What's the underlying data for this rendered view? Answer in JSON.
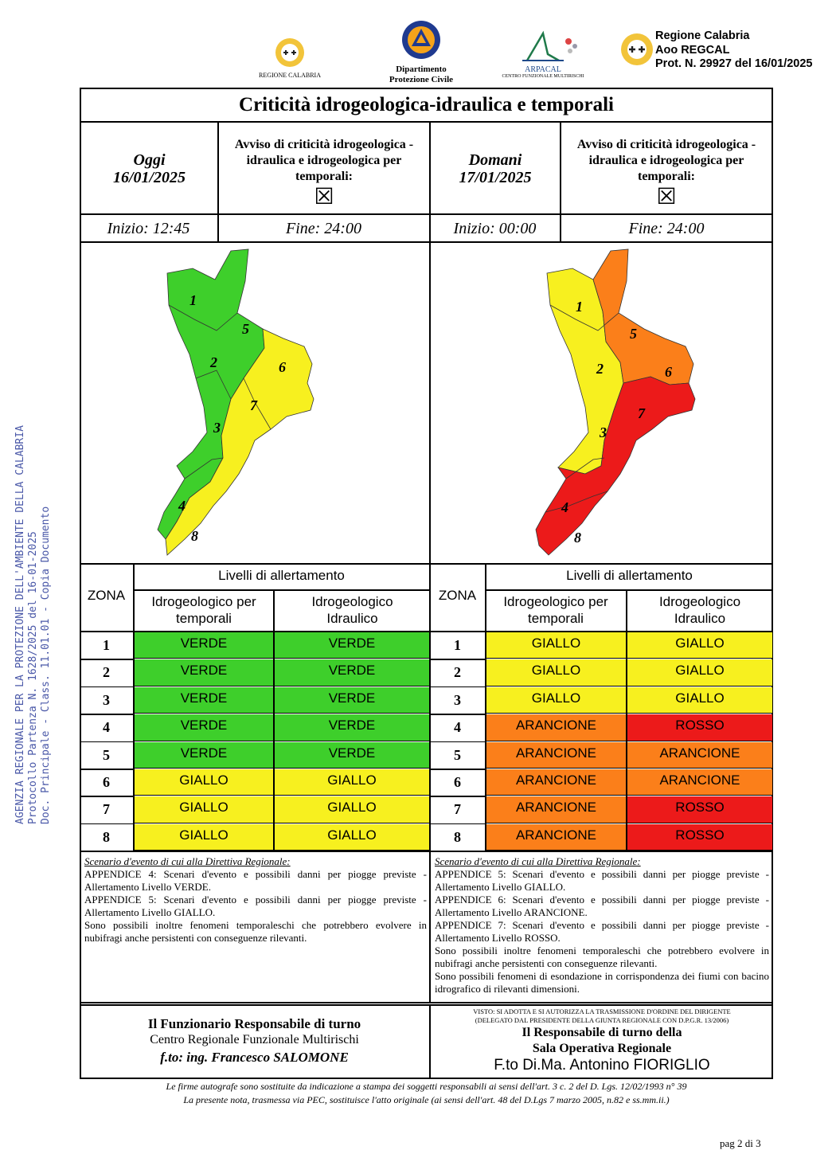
{
  "header": {
    "logo1_caption": "REGIONE CALABRIA",
    "logo2_caption_1": "Dipartimento",
    "logo2_caption_2": "Protezione Civile",
    "logo3_caption": "ARPACAL",
    "logo3_sub": "CENTRO FUNZIONALE MULTIRISCHI",
    "prot_line1": "Regione Calabria",
    "prot_line2": "Aoo REGCAL",
    "prot_line3": "Prot. N. 29927 del 16/01/2025"
  },
  "side_stamp": {
    "line1": "AGENZIA REGIONALE PER LA PROTEZIONE DELL'AMBIENTE DELLA CALABRIA",
    "line2": "Protocollo Partenza N. 1628/2025 del 16-01-2025",
    "line3": "Doc. Principale - Class. 11.01.01 - Copia Documento"
  },
  "title": "Criticità idrogeologica-idraulica e temporali",
  "today": {
    "label": "Oggi",
    "date": "16/01/2025",
    "avviso": "Avviso di criticità idrogeologica - idraulica e idrogeologica per temporali:",
    "checkbox": "☒",
    "inizio": "Inizio: 12:45",
    "fine": "Fine: 24:00"
  },
  "tomorrow": {
    "label": "Domani",
    "date": "17/01/2025",
    "avviso": "Avviso di criticità idrogeologica - idraulica e idrogeologica per temporali:",
    "checkbox": "☒",
    "inizio": "Inizio: 00:00",
    "fine": "Fine: 24:00"
  },
  "map_labels": [
    "1",
    "2",
    "3",
    "4",
    "5",
    "6",
    "7",
    "8"
  ],
  "table": {
    "zona_header": "ZONA",
    "livelli_header": "Livelli di allertamento",
    "col1_header": "Idrogeologico per temporali",
    "col2_header": "Idrogeologico Idraulico",
    "colors": {
      "VERDE": "#3ecf2b",
      "GIALLO": "#f7f01f",
      "ARANCIONE": "#fb7f1a",
      "ROSSO": "#ec1a1a"
    },
    "today_rows": [
      {
        "zona": "1",
        "t": "VERDE",
        "i": "VERDE"
      },
      {
        "zona": "2",
        "t": "VERDE",
        "i": "VERDE"
      },
      {
        "zona": "3",
        "t": "VERDE",
        "i": "VERDE"
      },
      {
        "zona": "4",
        "t": "VERDE",
        "i": "VERDE"
      },
      {
        "zona": "5",
        "t": "VERDE",
        "i": "VERDE"
      },
      {
        "zona": "6",
        "t": "GIALLO",
        "i": "GIALLO"
      },
      {
        "zona": "7",
        "t": "GIALLO",
        "i": "GIALLO"
      },
      {
        "zona": "8",
        "t": "GIALLO",
        "i": "GIALLO"
      }
    ],
    "tomorrow_rows": [
      {
        "zona": "1",
        "t": "GIALLO",
        "i": "GIALLO"
      },
      {
        "zona": "2",
        "t": "GIALLO",
        "i": "GIALLO"
      },
      {
        "zona": "3",
        "t": "GIALLO",
        "i": "GIALLO"
      },
      {
        "zona": "4",
        "t": "ARANCIONE",
        "i": "ROSSO"
      },
      {
        "zona": "5",
        "t": "ARANCIONE",
        "i": "ARANCIONE"
      },
      {
        "zona": "6",
        "t": "ARANCIONE",
        "i": "ARANCIONE"
      },
      {
        "zona": "7",
        "t": "ARANCIONE",
        "i": "ROSSO"
      },
      {
        "zona": "8",
        "t": "ARANCIONE",
        "i": "ROSSO"
      }
    ]
  },
  "scenario": {
    "heading": "Scenario d'evento di cui alla Direttiva Regionale:",
    "today_lines": [
      "APPENDICE 4: Scenari d'evento e possibili danni per piogge previste - Allertamento Livello VERDE.",
      "APPENDICE 5: Scenari d'evento e possibili danni per piogge previste - Allertamento Livello GIALLO.",
      "Sono possibili inoltre fenomeni temporaleschi che potrebbero evolvere in nubifragi anche persistenti con conseguenze rilevanti."
    ],
    "tomorrow_lines": [
      "APPENDICE 5: Scenari d'evento e possibili danni per piogge previste - Allertamento Livello GIALLO.",
      "APPENDICE 6: Scenari d'evento e possibili danni per piogge previste - Allertamento Livello ARANCIONE.",
      "APPENDICE 7: Scenari d'evento e possibili danni per piogge previste - Allertamento Livello ROSSO.",
      "Sono possibili inoltre fenomeni temporaleschi che potrebbero evolvere in nubifragi anche persistenti con conseguenze rilevanti.",
      "Sono possibili fenomeni di esondazione in corrispondenza dei fiumi con bacino idrografico di rilevanti dimensioni."
    ]
  },
  "signatures": {
    "left_title": "Il Funzionario Responsabile di turno",
    "left_sub": "Centro Regionale Funzionale Multirischi",
    "left_name": "f.to: ing. Francesco SALOMONE",
    "right_visto1": "VISTO: SI ADOTTA E SI AUTORIZZA LA TRASMISSIONE D'ORDINE DEL DIRIGENTE",
    "right_visto2": "(DELEGATO DAL PRESIDENTE DELLA GIUNTA REGIONALE CON D.P.G.R. 13/2006)",
    "right_title1": "Il Responsabile di turno della",
    "right_title2": "Sala Operativa Regionale",
    "right_name": "F.to Di.Ma. Antonino FIORIGLIO"
  },
  "footer": {
    "line1": "Le firme autografe sono sostituite da indicazione a stampa dei soggetti responsabili ai sensi dell'art. 3 c. 2 del D. Lgs. 12/02/1993 n° 39",
    "line2": "La presente nota, trasmessa via PEC, sostituisce l'atto originale (ai sensi dell'art. 48 del D.Lgs 7 marzo 2005, n.82 e ss.mm.ii.)",
    "page": "pag 2 di 3"
  }
}
